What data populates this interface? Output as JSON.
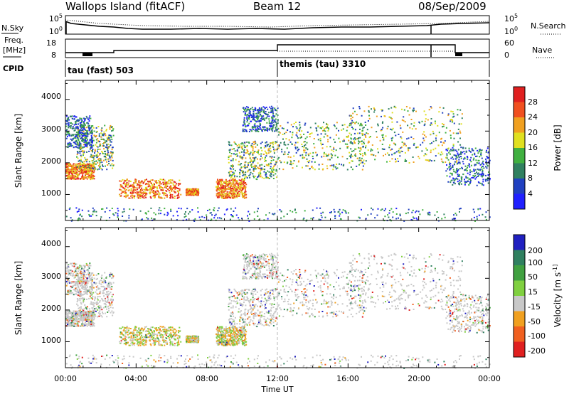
{
  "header": {
    "station": "Wallops Island (fitACF)",
    "beam": "Beam 12",
    "date": "08/Sep/2009"
  },
  "left_labels": {
    "nsky": "N.Sky",
    "freq_top": "Freq.",
    "freq_unit": "[MHz]",
    "cpid": "CPID"
  },
  "right_labels": {
    "nsearch": "N.Search",
    "nave": "Nave"
  },
  "noise_panel": {
    "left_ticks": [
      "10^5",
      "10^0"
    ],
    "right_ticks": [
      "10^5",
      "10^0"
    ]
  },
  "freq_panel": {
    "left_ticks": [
      "18",
      "8"
    ],
    "right_ticks": [
      "60",
      "0"
    ]
  },
  "cpid_panel": {
    "modes": [
      {
        "label": "tau (fast) 503"
      },
      {
        "label": "themis (tau) 3310"
      }
    ]
  },
  "power_panel": {
    "ylabel": "Slant Range [km]",
    "yticks": [
      "4000",
      "3000",
      "2000",
      "1000"
    ],
    "colorbar_label": "Power [dB]",
    "colorbar_ticks": [
      "28",
      "24",
      "20",
      "16",
      "12",
      "8",
      "4"
    ],
    "colors": [
      "#e02020",
      "#f05020",
      "#f0a020",
      "#e0e020",
      "#40b040",
      "#308060",
      "#2040c0",
      "#2020ff"
    ]
  },
  "velocity_panel": {
    "ylabel": "Slant Range [km]",
    "yticks": [
      "4000",
      "3000",
      "2000",
      "1000"
    ],
    "colorbar_label": "Velocity [m s^-1]",
    "colorbar_ticks": [
      "200",
      "100",
      "50",
      "15",
      "-15",
      "-50",
      "-100",
      "-200"
    ],
    "colors": [
      "#2020c0",
      "#308060",
      "#40a040",
      "#80d040",
      "#c8c8c8",
      "#f0a020",
      "#f06020",
      "#e02020"
    ]
  },
  "xaxis": {
    "ticks": [
      "00:00",
      "04:00",
      "08:00",
      "12:00",
      "16:00",
      "20:00",
      "00:00"
    ],
    "label": "Time UT"
  },
  "chart_data": {
    "type": "heatmap",
    "x_range_hours": [
      0,
      24
    ],
    "y_range_km": [
      180,
      4600
    ],
    "power_bands": [
      {
        "t_start": 0.0,
        "t_end": 1.6,
        "r_start": 1500,
        "r_end": 2000,
        "level": "high"
      },
      {
        "t_start": 0.6,
        "t_end": 2.7,
        "r_start": 1800,
        "r_end": 3200,
        "level": "medium"
      },
      {
        "t_start": 0.0,
        "t_end": 1.5,
        "r_start": 2500,
        "r_end": 3500,
        "level": "low"
      },
      {
        "t_start": 3.0,
        "t_end": 6.5,
        "r_start": 900,
        "r_end": 1500,
        "level": "high"
      },
      {
        "t_start": 6.8,
        "t_end": 7.5,
        "r_start": 1000,
        "r_end": 1200,
        "level": "high"
      },
      {
        "t_start": 8.5,
        "t_end": 10.2,
        "r_start": 900,
        "r_end": 1500,
        "level": "high"
      },
      {
        "t_start": 9.2,
        "t_end": 12.0,
        "r_start": 1500,
        "r_end": 2700,
        "level": "medium"
      },
      {
        "t_start": 10.0,
        "t_end": 12.0,
        "r_start": 3000,
        "r_end": 3800,
        "level": "low"
      },
      {
        "t_start": 12.0,
        "t_end": 17.0,
        "r_start": 1800,
        "r_end": 3300,
        "level": "medium"
      },
      {
        "t_start": 16.0,
        "t_end": 22.5,
        "r_start": 2000,
        "r_end": 3800,
        "level": "medium"
      },
      {
        "t_start": 21.5,
        "t_end": 24.0,
        "r_start": 1300,
        "r_end": 2500,
        "level": "low"
      },
      {
        "t_start": 0.0,
        "t_end": 24.0,
        "r_start": 180,
        "r_end": 600,
        "level": "low"
      }
    ]
  }
}
